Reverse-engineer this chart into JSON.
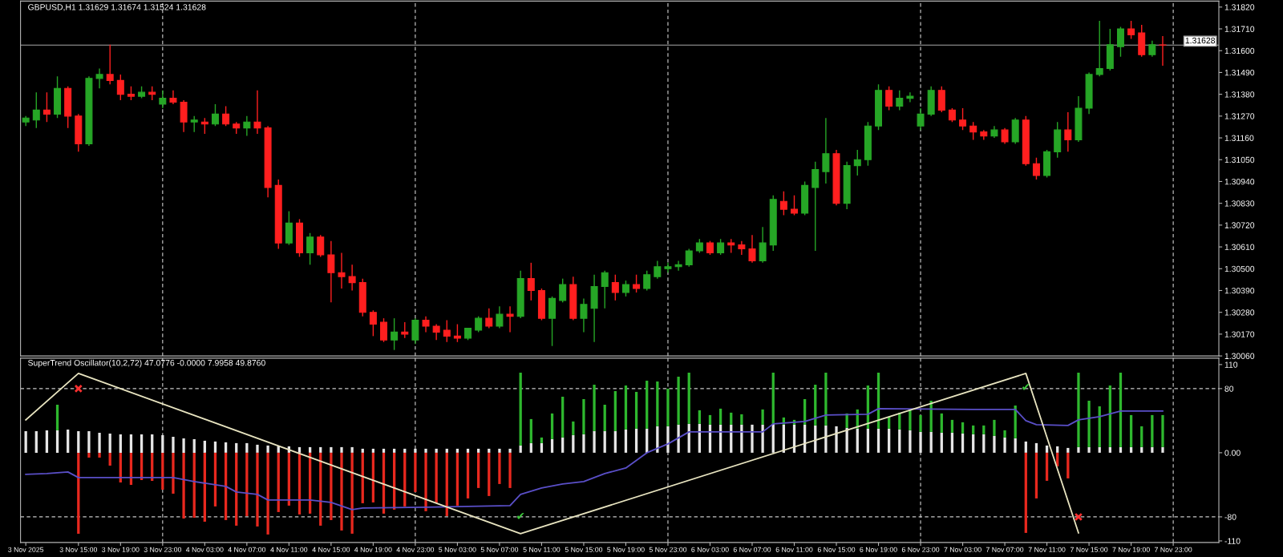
{
  "chart_data": [
    {
      "type": "candlestick",
      "title": "GBPUSD,H1 1.31629 1.31674 1.31524 1.31628",
      "x": [
        "2025-11-03T10:00",
        "2025-11-03T11:00",
        "2025-11-03T12:00",
        "2025-11-03T13:00",
        "2025-11-03T14:00",
        "2025-11-03T15:00",
        "2025-11-03T16:00",
        "2025-11-03T17:00",
        "2025-11-03T18:00",
        "2025-11-03T19:00",
        "2025-11-03T20:00",
        "2025-11-03T21:00",
        "2025-11-03T22:00",
        "2025-11-03T23:00",
        "2025-11-04T00:00",
        "2025-11-04T01:00",
        "2025-11-04T02:00",
        "2025-11-04T03:00",
        "2025-11-04T04:00",
        "2025-11-04T05:00",
        "2025-11-04T06:00",
        "2025-11-04T07:00",
        "2025-11-04T08:00",
        "2025-11-04T09:00",
        "2025-11-04T10:00",
        "2025-11-04T11:00",
        "2025-11-04T12:00",
        "2025-11-04T13:00",
        "2025-11-04T14:00",
        "2025-11-04T15:00",
        "2025-11-04T16:00",
        "2025-11-04T17:00",
        "2025-11-04T18:00",
        "2025-11-04T19:00",
        "2025-11-04T20:00",
        "2025-11-04T21:00",
        "2025-11-04T22:00",
        "2025-11-04T23:00",
        "2025-11-05T00:00",
        "2025-11-05T01:00",
        "2025-11-05T02:00",
        "2025-11-05T03:00",
        "2025-11-05T04:00",
        "2025-11-05T05:00",
        "2025-11-05T06:00",
        "2025-11-05T07:00",
        "2025-11-05T08:00",
        "2025-11-05T09:00",
        "2025-11-05T10:00",
        "2025-11-05T11:00",
        "2025-11-05T12:00",
        "2025-11-05T13:00",
        "2025-11-05T14:00",
        "2025-11-05T15:00",
        "2025-11-05T16:00",
        "2025-11-05T17:00",
        "2025-11-05T18:00",
        "2025-11-05T19:00",
        "2025-11-05T20:00",
        "2025-11-05T21:00",
        "2025-11-05T22:00",
        "2025-11-05T23:00",
        "2025-11-06T00:00",
        "2025-11-06T01:00",
        "2025-11-06T02:00",
        "2025-11-06T03:00",
        "2025-11-06T04:00",
        "2025-11-06T05:00",
        "2025-11-06T06:00",
        "2025-11-06T07:00",
        "2025-11-06T08:00",
        "2025-11-06T09:00",
        "2025-11-06T10:00",
        "2025-11-06T11:00",
        "2025-11-06T12:00",
        "2025-11-06T13:00",
        "2025-11-06T14:00",
        "2025-11-06T15:00",
        "2025-11-06T16:00",
        "2025-11-06T17:00",
        "2025-11-06T18:00",
        "2025-11-06T19:00",
        "2025-11-06T20:00",
        "2025-11-06T21:00",
        "2025-11-06T22:00",
        "2025-11-06T23:00",
        "2025-11-07T00:00",
        "2025-11-07T01:00",
        "2025-11-07T02:00",
        "2025-11-07T03:00",
        "2025-11-07T04:00",
        "2025-11-07T05:00",
        "2025-11-07T06:00",
        "2025-11-07T07:00",
        "2025-11-07T08:00",
        "2025-11-07T09:00",
        "2025-11-07T10:00",
        "2025-11-07T11:00",
        "2025-11-07T12:00",
        "2025-11-07T13:00",
        "2025-11-07T14:00",
        "2025-11-07T15:00",
        "2025-11-07T16:00",
        "2025-11-07T17:00",
        "2025-11-07T18:00",
        "2025-11-07T19:00",
        "2025-11-07T20:00",
        "2025-11-07T21:00",
        "2025-11-07T22:00"
      ],
      "ohlc": [
        [
          1.3124,
          1.3127,
          1.3122,
          1.3126
        ],
        [
          1.3125,
          1.3139,
          1.3121,
          1.313
        ],
        [
          1.313,
          1.3139,
          1.3124,
          1.3128
        ],
        [
          1.3128,
          1.3147,
          1.3126,
          1.3141
        ],
        [
          1.3141,
          1.3142,
          1.3121,
          1.3127
        ],
        [
          1.3127,
          1.3128,
          1.3109,
          1.3113
        ],
        [
          1.3113,
          1.3147,
          1.3112,
          1.3146
        ],
        [
          1.3146,
          1.3151,
          1.3141,
          1.3148
        ],
        [
          1.3148,
          1.3163,
          1.3143,
          1.3145
        ],
        [
          1.3145,
          1.3148,
          1.3135,
          1.3138
        ],
        [
          1.3138,
          1.3142,
          1.3135,
          1.3137
        ],
        [
          1.3137,
          1.3142,
          1.3136,
          1.3139
        ],
        [
          1.3139,
          1.3142,
          1.3135,
          1.3138
        ],
        [
          1.3133,
          1.314,
          1.3131,
          1.3136
        ],
        [
          1.3136,
          1.314,
          1.3133,
          1.3134
        ],
        [
          1.3134,
          1.3135,
          1.3119,
          1.3124
        ],
        [
          1.3124,
          1.3127,
          1.3119,
          1.3125
        ],
        [
          1.3124,
          1.3126,
          1.3118,
          1.3123
        ],
        [
          1.3123,
          1.3133,
          1.3122,
          1.3128
        ],
        [
          1.3128,
          1.3132,
          1.3122,
          1.3123
        ],
        [
          1.3123,
          1.3124,
          1.3118,
          1.3121
        ],
        [
          1.3121,
          1.3127,
          1.3117,
          1.3124
        ],
        [
          1.3124,
          1.314,
          1.3118,
          1.3121
        ],
        [
          1.3121,
          1.3122,
          1.3086,
          1.3091
        ],
        [
          1.3092,
          1.3095,
          1.306,
          1.3063
        ],
        [
          1.3063,
          1.3079,
          1.3062,
          1.3073
        ],
        [
          1.3073,
          1.3075,
          1.3056,
          1.3058
        ],
        [
          1.3058,
          1.3068,
          1.3052,
          1.3066
        ],
        [
          1.3066,
          1.3067,
          1.3056,
          1.3057
        ],
        [
          1.3057,
          1.3064,
          1.3033,
          1.3048
        ],
        [
          1.3048,
          1.3058,
          1.304,
          1.3046
        ],
        [
          1.3046,
          1.3052,
          1.3039,
          1.3043
        ],
        [
          1.3043,
          1.3045,
          1.3026,
          1.3028
        ],
        [
          1.3028,
          1.3029,
          1.3016,
          1.3022
        ],
        [
          1.3023,
          1.3025,
          1.3013,
          1.3014
        ],
        [
          1.3014,
          1.3025,
          1.3009,
          1.3018
        ],
        [
          1.3018,
          1.3023,
          1.3015,
          1.3017
        ],
        [
          1.3014,
          1.3025,
          1.3012,
          1.3024
        ],
        [
          1.3024,
          1.3026,
          1.3018,
          1.3021
        ],
        [
          1.3021,
          1.3022,
          1.3014,
          1.3018
        ],
        [
          1.3019,
          1.3024,
          1.3013,
          1.3016
        ],
        [
          1.3016,
          1.3022,
          1.3013,
          1.3015
        ],
        [
          1.3015,
          1.302,
          1.3014,
          1.302
        ],
        [
          1.3019,
          1.3026,
          1.3018,
          1.3025
        ],
        [
          1.3025,
          1.303,
          1.302,
          1.3021
        ],
        [
          1.3021,
          1.3031,
          1.302,
          1.3027
        ],
        [
          1.3027,
          1.3031,
          1.3018,
          1.3026
        ],
        [
          1.3026,
          1.3049,
          1.3025,
          1.3045
        ],
        [
          1.3045,
          1.3053,
          1.3034,
          1.3039
        ],
        [
          1.3039,
          1.304,
          1.3024,
          1.3025
        ],
        [
          1.3025,
          1.3036,
          1.3011,
          1.3035
        ],
        [
          1.3034,
          1.3045,
          1.3033,
          1.3042
        ],
        [
          1.3042,
          1.3046,
          1.3024,
          1.3025
        ],
        [
          1.3025,
          1.3035,
          1.3018,
          1.3032
        ],
        [
          1.303,
          1.3047,
          1.3013,
          1.3041
        ],
        [
          1.3041,
          1.3049,
          1.303,
          1.3048
        ],
        [
          1.3043,
          1.3047,
          1.3034,
          1.3038
        ],
        [
          1.3038,
          1.3044,
          1.3036,
          1.3042
        ],
        [
          1.3042,
          1.3047,
          1.3038,
          1.304
        ],
        [
          1.304,
          1.3049,
          1.3039,
          1.3047
        ],
        [
          1.3046,
          1.3054,
          1.3045,
          1.3051
        ],
        [
          1.305,
          1.3053,
          1.3048,
          1.3051
        ],
        [
          1.3051,
          1.3054,
          1.3049,
          1.3052
        ],
        [
          1.3052,
          1.306,
          1.3051,
          1.3059
        ],
        [
          1.3059,
          1.3065,
          1.3058,
          1.3063
        ],
        [
          1.3063,
          1.3064,
          1.3057,
          1.3058
        ],
        [
          1.3058,
          1.3065,
          1.3057,
          1.3063
        ],
        [
          1.3063,
          1.3065,
          1.3058,
          1.3062
        ],
        [
          1.3062,
          1.3064,
          1.3057,
          1.306
        ],
        [
          1.306,
          1.3067,
          1.3053,
          1.3054
        ],
        [
          1.3054,
          1.3071,
          1.3053,
          1.3063
        ],
        [
          1.3062,
          1.3087,
          1.3059,
          1.3085
        ],
        [
          1.3084,
          1.3089,
          1.3077,
          1.308
        ],
        [
          1.308,
          1.3087,
          1.3077,
          1.3078
        ],
        [
          1.3078,
          1.3094,
          1.3077,
          1.3092
        ],
        [
          1.3091,
          1.3104,
          1.3059,
          1.31
        ],
        [
          1.3099,
          1.3126,
          1.3093,
          1.3108
        ],
        [
          1.3108,
          1.311,
          1.3082,
          1.3083
        ],
        [
          1.3083,
          1.3104,
          1.308,
          1.3102
        ],
        [
          1.3102,
          1.311,
          1.3097,
          1.3105
        ],
        [
          1.3105,
          1.3124,
          1.3102,
          1.3122
        ],
        [
          1.3122,
          1.3143,
          1.312,
          1.314
        ],
        [
          1.314,
          1.3142,
          1.313,
          1.3132
        ],
        [
          1.3132,
          1.314,
          1.313,
          1.3136
        ],
        [
          1.3136,
          1.3139,
          1.3134,
          1.3137
        ],
        [
          1.3122,
          1.3131,
          1.312,
          1.3128
        ],
        [
          1.3128,
          1.3142,
          1.3127,
          1.314
        ],
        [
          1.314,
          1.3142,
          1.3129,
          1.313
        ],
        [
          1.313,
          1.3131,
          1.3124,
          1.3125
        ],
        [
          1.3125,
          1.3131,
          1.312,
          1.3122
        ],
        [
          1.3122,
          1.3124,
          1.3115,
          1.3119
        ],
        [
          1.3119,
          1.312,
          1.3115,
          1.3117
        ],
        [
          1.3117,
          1.3122,
          1.3116,
          1.312
        ],
        [
          1.312,
          1.3121,
          1.3113,
          1.3114
        ],
        [
          1.3114,
          1.3126,
          1.3113,
          1.3125
        ],
        [
          1.3125,
          1.3127,
          1.3102,
          1.3103
        ],
        [
          1.3103,
          1.3106,
          1.3095,
          1.3097
        ],
        [
          1.3097,
          1.311,
          1.3096,
          1.3109
        ],
        [
          1.3109,
          1.3124,
          1.3106,
          1.312
        ],
        [
          1.312,
          1.3129,
          1.3109,
          1.3115
        ],
        [
          1.3115,
          1.3137,
          1.3114,
          1.3131
        ],
        [
          1.3131,
          1.3149,
          1.3128,
          1.3148
        ],
        [
          1.3148,
          1.3175,
          1.3147,
          1.3151
        ],
        [
          1.3151,
          1.3171,
          1.315,
          1.3163
        ],
        [
          1.3162,
          1.3172,
          1.3157,
          1.3171
        ],
        [
          1.3171,
          1.3175,
          1.3166,
          1.3168
        ],
        [
          1.3169,
          1.3173,
          1.3157,
          1.3158
        ],
        [
          1.3158,
          1.3165,
          1.3157,
          1.3163
        ],
        [
          1.31629,
          1.31674,
          1.31524,
          1.31628
        ]
      ],
      "colors": [
        "#26a626",
        "#26a626",
        "#ff1f1f",
        "#26a626",
        "#ff1f1f",
        "#ff1f1f",
        "#26a626",
        "#26a626",
        "#ff1f1f",
        "#ff1f1f",
        "#ff1f1f",
        "#26a626",
        "#ff1f1f",
        "#26a626",
        "#ff1f1f",
        "#ff1f1f",
        "#26a626",
        "#ff1f1f",
        "#26a626",
        "#ff1f1f",
        "#ff1f1f",
        "#26a626",
        "#ff1f1f",
        "#ff1f1f",
        "#ff1f1f",
        "#26a626",
        "#ff1f1f",
        "#26a626",
        "#ff1f1f",
        "#ff1f1f",
        "#ff1f1f",
        "#ff1f1f",
        "#ff1f1f",
        "#ff1f1f",
        "#ff1f1f",
        "#26a626",
        "#ff1f1f",
        "#26a626",
        "#ff1f1f",
        "#ff1f1f",
        "#ff1f1f",
        "#ff1f1f",
        "#26a626",
        "#26a626",
        "#ff1f1f",
        "#26a626",
        "#ff1f1f",
        "#26a626",
        "#ff1f1f",
        "#ff1f1f",
        "#26a626",
        "#26a626",
        "#ff1f1f",
        "#26a626",
        "#26a626",
        "#26a626",
        "#ff1f1f",
        "#26a626",
        "#ff1f1f",
        "#26a626",
        "#26a626",
        "#26a626",
        "#26a626",
        "#26a626",
        "#26a626",
        "#ff1f1f",
        "#26a626",
        "#ff1f1f",
        "#ff1f1f",
        "#ff1f1f",
        "#26a626",
        "#26a626",
        "#ff1f1f",
        "#ff1f1f",
        "#26a626",
        "#26a626",
        "#26a626",
        "#ff1f1f",
        "#26a626",
        "#26a626",
        "#26a626",
        "#26a626",
        "#ff1f1f",
        "#26a626",
        "#26a626",
        "#26a626",
        "#26a626",
        "#ff1f1f",
        "#ff1f1f",
        "#ff1f1f",
        "#ff1f1f",
        "#ff1f1f",
        "#26a626",
        "#ff1f1f",
        "#26a626",
        "#ff1f1f",
        "#ff1f1f",
        "#26a626",
        "#26a626",
        "#ff1f1f",
        "#26a626",
        "#26a626",
        "#26a626",
        "#26a626",
        "#26a626",
        "#ff1f1f",
        "#ff1f1f",
        "#26a626",
        "#ff1f1f"
      ],
      "xlim": [
        "2025-11-03T09:30",
        "2025-11-08T03:20"
      ],
      "ylim": [
        1.3006,
        1.3185
      ],
      "yticks": [
        {
          "value": 1.3006,
          "label": "1.30060"
        },
        {
          "value": 1.3017,
          "label": "1.30170"
        },
        {
          "value": 1.3028,
          "label": "1.30280"
        },
        {
          "value": 1.3039,
          "label": "1.30390"
        },
        {
          "value": 1.305,
          "label": "1.30500"
        },
        {
          "value": 1.3061,
          "label": "1.30610"
        },
        {
          "value": 1.3072,
          "label": "1.30720"
        },
        {
          "value": 1.3083,
          "label": "1.30830"
        },
        {
          "value": 1.3094,
          "label": "1.30940"
        },
        {
          "value": 1.3105,
          "label": "1.31050"
        },
        {
          "value": 1.3116,
          "label": "1.31160"
        },
        {
          "value": 1.3127,
          "label": "1.31270"
        },
        {
          "value": 1.3138,
          "label": "1.31380"
        },
        {
          "value": 1.3149,
          "label": "1.31490"
        },
        {
          "value": 1.316,
          "label": "1.31600"
        },
        {
          "value": 1.3171,
          "label": "1.31710"
        },
        {
          "value": 1.3182,
          "label": "1.31820"
        }
      ],
      "ref_lines": [
        {
          "axis": "y",
          "value": 1.31628,
          "label": "1.31628",
          "color": "#a8a8a8",
          "line_style": "solid"
        },
        {
          "axis": "x",
          "value": "2025-11-03T23:00",
          "color": "#d0d0d0",
          "line_style": "dashed"
        },
        {
          "axis": "x",
          "value": "2025-11-04T23:00",
          "color": "#d0d0d0",
          "line_style": "dashed"
        },
        {
          "axis": "x",
          "value": "2025-11-05T23:00",
          "color": "#d0d0d0",
          "line_style": "dashed"
        },
        {
          "axis": "x",
          "value": "2025-11-06T23:00",
          "color": "#d0d0d0",
          "line_style": "dashed"
        },
        {
          "axis": "x",
          "value": "2025-11-07T23:00",
          "color": "#d0d0d0",
          "line_style": "dashed"
        }
      ],
      "tick_labels": "y"
    },
    {
      "type": "bar",
      "stacked": true,
      "title": "SuperTrend Oscillator(10,2,72) 47.0776 -0.0000 7.9958 49.8760",
      "x": [
        "2025-11-03T10:00",
        "2025-11-03T11:00",
        "2025-11-03T12:00",
        "2025-11-03T13:00",
        "2025-11-03T14:00",
        "2025-11-03T15:00",
        "2025-11-03T16:00",
        "2025-11-03T17:00",
        "2025-11-03T18:00",
        "2025-11-03T19:00",
        "2025-11-03T20:00",
        "2025-11-03T21:00",
        "2025-11-03T22:00",
        "2025-11-03T23:00",
        "2025-11-04T00:00",
        "2025-11-04T01:00",
        "2025-11-04T02:00",
        "2025-11-04T03:00",
        "2025-11-04T04:00",
        "2025-11-04T05:00",
        "2025-11-04T06:00",
        "2025-11-04T07:00",
        "2025-11-04T08:00",
        "2025-11-04T09:00",
        "2025-11-04T10:00",
        "2025-11-04T11:00",
        "2025-11-04T12:00",
        "2025-11-04T13:00",
        "2025-11-04T14:00",
        "2025-11-04T15:00",
        "2025-11-04T16:00",
        "2025-11-04T17:00",
        "2025-11-04T18:00",
        "2025-11-04T19:00",
        "2025-11-04T20:00",
        "2025-11-04T21:00",
        "2025-11-04T22:00",
        "2025-11-04T23:00",
        "2025-11-05T00:00",
        "2025-11-05T01:00",
        "2025-11-05T02:00",
        "2025-11-05T03:00",
        "2025-11-05T04:00",
        "2025-11-05T05:00",
        "2025-11-05T06:00",
        "2025-11-05T07:00",
        "2025-11-05T08:00",
        "2025-11-05T09:00",
        "2025-11-05T10:00",
        "2025-11-05T11:00",
        "2025-11-05T12:00",
        "2025-11-05T13:00",
        "2025-11-05T14:00",
        "2025-11-05T15:00",
        "2025-11-05T16:00",
        "2025-11-05T17:00",
        "2025-11-05T18:00",
        "2025-11-05T19:00",
        "2025-11-05T20:00",
        "2025-11-05T21:00",
        "2025-11-05T22:00",
        "2025-11-05T23:00",
        "2025-11-06T00:00",
        "2025-11-06T01:00",
        "2025-11-06T02:00",
        "2025-11-06T03:00",
        "2025-11-06T04:00",
        "2025-11-06T05:00",
        "2025-11-06T06:00",
        "2025-11-06T07:00",
        "2025-11-06T08:00",
        "2025-11-06T09:00",
        "2025-11-06T10:00",
        "2025-11-06T11:00",
        "2025-11-06T12:00",
        "2025-11-06T13:00",
        "2025-11-06T14:00",
        "2025-11-06T15:00",
        "2025-11-06T16:00",
        "2025-11-06T17:00",
        "2025-11-06T18:00",
        "2025-11-06T19:00",
        "2025-11-06T20:00",
        "2025-11-06T21:00",
        "2025-11-06T22:00",
        "2025-11-06T23:00",
        "2025-11-07T00:00",
        "2025-11-07T01:00",
        "2025-11-07T02:00",
        "2025-11-07T03:00",
        "2025-11-07T04:00",
        "2025-11-07T05:00",
        "2025-11-07T06:00",
        "2025-11-07T07:00",
        "2025-11-07T08:00",
        "2025-11-07T09:00",
        "2025-11-07T10:00",
        "2025-11-07T11:00",
        "2025-11-07T12:00",
        "2025-11-07T13:00",
        "2025-11-07T14:00",
        "2025-11-07T15:00",
        "2025-11-07T16:00",
        "2025-11-07T17:00",
        "2025-11-07T18:00",
        "2025-11-07T19:00",
        "2025-11-07T20:00",
        "2025-11-07T21:00",
        "2025-11-07T22:00"
      ],
      "series": [
        {
          "color": "#e6e6e6",
          "values": [
            27,
            27,
            28,
            28,
            29,
            27,
            27,
            25,
            24,
            23,
            23,
            23,
            23,
            22,
            20,
            18,
            17,
            15,
            14,
            13,
            12,
            12,
            10,
            9,
            8,
            8,
            7,
            7,
            7,
            7,
            7,
            7,
            5,
            5,
            5,
            5,
            5,
            5,
            5,
            5,
            5,
            5,
            5,
            5,
            5,
            5,
            5,
            9,
            12,
            12,
            17,
            19,
            22,
            23,
            27,
            27,
            27,
            29,
            30,
            30,
            33,
            33,
            35,
            36,
            36,
            35,
            35,
            35,
            35,
            35,
            35,
            36,
            35,
            35,
            35,
            34,
            34,
            33,
            31,
            30,
            30,
            30,
            30,
            29,
            28,
            26,
            26,
            25,
            25,
            24,
            23,
            23,
            21,
            19,
            18,
            14,
            12,
            9,
            8,
            6,
            7,
            7,
            7,
            7,
            7,
            7,
            7,
            7,
            7
          ]
        },
        {
          "color": "#2eb82e",
          "values": [
            null,
            null,
            null,
            32,
            null,
            null,
            null,
            null,
            null,
            null,
            null,
            null,
            null,
            null,
            null,
            null,
            null,
            null,
            null,
            null,
            null,
            null,
            null,
            null,
            null,
            null,
            null,
            null,
            null,
            null,
            null,
            null,
            null,
            null,
            null,
            null,
            null,
            null,
            null,
            null,
            null,
            null,
            null,
            null,
            null,
            null,
            null,
            91,
            30,
            7,
            32,
            51,
            17,
            44,
            58,
            33,
            50,
            55,
            46,
            60,
            56,
            47,
            60,
            64,
            17,
            12,
            20,
            15,
            13,
            null,
            19,
            64,
            9,
            6,
            32,
            51,
            66,
            null,
            18,
            24,
            54,
            70,
            15,
            21,
            26,
            21,
            39,
            24,
            16,
            14,
            11,
            11,
            20,
            9,
            41,
            null,
            null,
            null,
            null,
            null,
            93,
            58,
            51,
            77,
            93,
            40,
            26,
            40,
            40
          ]
        },
        {
          "color": "#e8281e",
          "values": [
            null,
            null,
            null,
            null,
            null,
            -101,
            -6,
            -6,
            -16,
            -37,
            -40,
            -34,
            -35,
            -46,
            -51,
            -82,
            -81,
            -86,
            -67,
            -84,
            -91,
            -79,
            -92,
            -102,
            -74,
            -66,
            -77,
            -76,
            -91,
            -84,
            -97,
            -101,
            -63,
            -62,
            -76,
            -71,
            -67,
            -49,
            -73,
            -63,
            -79,
            -66,
            -57,
            -44,
            -54,
            -39,
            -44,
            null,
            null,
            null,
            null,
            null,
            null,
            null,
            null,
            null,
            null,
            null,
            null,
            null,
            null,
            null,
            null,
            null,
            null,
            null,
            null,
            null,
            null,
            null,
            null,
            null,
            null,
            null,
            null,
            null,
            null,
            null,
            null,
            null,
            null,
            null,
            null,
            null,
            null,
            null,
            null,
            null,
            null,
            null,
            null,
            null,
            null,
            null,
            null,
            -100,
            -57,
            -35,
            -17,
            -32,
            null,
            null,
            null,
            null,
            null,
            null,
            null,
            null,
            null
          ]
        },
        {
          "type": "line",
          "color": "#5a4fc8",
          "x": [
            "2025-11-03T10:00",
            "2025-11-03T12:00",
            "2025-11-03T14:00",
            "2025-11-03T15:00",
            "2025-11-04T00:00",
            "2025-11-04T02:00",
            "2025-11-04T05:00",
            "2025-11-04T06:00",
            "2025-11-04T08:00",
            "2025-11-04T09:00",
            "2025-11-04T13:00",
            "2025-11-04T15:00",
            "2025-11-04T17:00",
            "2025-11-04T18:00",
            "2025-11-05T00:00",
            "2025-11-05T08:00",
            "2025-11-05T09:00",
            "2025-11-05T11:00",
            "2025-11-05T13:00",
            "2025-11-05T15:00",
            "2025-11-05T17:00",
            "2025-11-05T19:00",
            "2025-11-05T21:00",
            "2025-11-05T23:00",
            "2025-11-06T01:00",
            "2025-11-06T08:00",
            "2025-11-06T09:00",
            "2025-11-06T12:00",
            "2025-11-06T14:00",
            "2025-11-06T18:00",
            "2025-11-06T19:00",
            "2025-11-07T04:00",
            "2025-11-07T08:00",
            "2025-11-07T09:00",
            "2025-11-07T10:00",
            "2025-11-07T13:00",
            "2025-11-07T14:00",
            "2025-11-07T16:00",
            "2025-11-07T18:00",
            "2025-11-07T22:00"
          ],
          "values": [
            -27,
            -26,
            -24,
            -31,
            -31,
            -36,
            -42,
            -49,
            -52,
            -59,
            -59,
            -62,
            -71,
            -69,
            -68,
            -66,
            -52,
            -44,
            -39,
            -36,
            -26,
            -19,
            0,
            11,
            26,
            26,
            36,
            39,
            47,
            48,
            55,
            54,
            54,
            40,
            35,
            34,
            41,
            45,
            52,
            52
          ]
        },
        {
          "type": "line",
          "color": "#e8e4c0",
          "x": [
            "2025-11-03T10:00",
            "2025-11-03T15:00",
            "2025-11-05T09:00",
            "2025-11-07T09:00",
            "2025-11-07T14:00"
          ],
          "values": [
            41,
            99,
            -101,
            99,
            -100
          ]
        },
        {
          "type": "scatter",
          "marker": "cross",
          "color": "#ff3030",
          "x": [
            "2025-11-03T15:00",
            "2025-11-07T14:00"
          ],
          "values": [
            80,
            -80
          ]
        }
      ],
      "xlim": [
        "2025-11-03T09:30",
        "2025-11-08T03:20"
      ],
      "ylim": [
        -112,
        118
      ],
      "yticks": [
        110,
        80,
        {
          "value": 0,
          "label": "0.00"
        },
        -80,
        -110
      ],
      "xticks": [
        {
          "value": "2025-11-03T10:00",
          "label": "3 Nov 2025"
        },
        {
          "value": "2025-11-03T15:00",
          "label": "3 Nov 15:00"
        },
        {
          "value": "2025-11-03T19:00",
          "label": "3 Nov 19:00"
        },
        {
          "value": "2025-11-03T23:00",
          "label": "3 Nov 23:00"
        },
        {
          "value": "2025-11-04T03:00",
          "label": "4 Nov 03:00"
        },
        {
          "value": "2025-11-04T07:00",
          "label": "4 Nov 07:00"
        },
        {
          "value": "2025-11-04T11:00",
          "label": "4 Nov 11:00"
        },
        {
          "value": "2025-11-04T15:00",
          "label": "4 Nov 15:00"
        },
        {
          "value": "2025-11-04T19:00",
          "label": "4 Nov 19:00"
        },
        {
          "value": "2025-11-04T23:00",
          "label": "4 Nov 23:00"
        },
        {
          "value": "2025-11-05T03:00",
          "label": "5 Nov 03:00"
        },
        {
          "value": "2025-11-05T07:00",
          "label": "5 Nov 07:00"
        },
        {
          "value": "2025-11-05T11:00",
          "label": "5 Nov 11:00"
        },
        {
          "value": "2025-11-05T15:00",
          "label": "5 Nov 15:00"
        },
        {
          "value": "2025-11-05T19:00",
          "label": "5 Nov 19:00"
        },
        {
          "value": "2025-11-05T23:00",
          "label": "5 Nov 23:00"
        },
        {
          "value": "2025-11-06T03:00",
          "label": "6 Nov 03:00"
        },
        {
          "value": "2025-11-06T07:00",
          "label": "6 Nov 07:00"
        },
        {
          "value": "2025-11-06T11:00",
          "label": "6 Nov 11:00"
        },
        {
          "value": "2025-11-06T15:00",
          "label": "6 Nov 15:00"
        },
        {
          "value": "2025-11-06T19:00",
          "label": "6 Nov 19:00"
        },
        {
          "value": "2025-11-06T23:00",
          "label": "6 Nov 23:00"
        },
        {
          "value": "2025-11-07T03:00",
          "label": "7 Nov 03:00"
        },
        {
          "value": "2025-11-07T07:00",
          "label": "7 Nov 07:00"
        },
        {
          "value": "2025-11-07T11:00",
          "label": "7 Nov 11:00"
        },
        {
          "value": "2025-11-07T15:00",
          "label": "7 Nov 15:00"
        },
        {
          "value": "2025-11-07T19:00",
          "label": "7 Nov 19:00"
        },
        {
          "value": "2025-11-07T23:00",
          "label": "7 Nov 23:00"
        }
      ],
      "ref_lines": [
        {
          "axis": "y",
          "value": 80,
          "color": "#c8c8c8",
          "line_style": "dashed"
        },
        {
          "axis": "y",
          "value": -80,
          "color": "#c8c8c8",
          "line_style": "dashed"
        },
        {
          "axis": "x",
          "value": "2025-11-03T23:00",
          "color": "#d0d0d0",
          "line_style": "dashed"
        },
        {
          "axis": "x",
          "value": "2025-11-04T23:00",
          "color": "#d0d0d0",
          "line_style": "dashed"
        },
        {
          "axis": "x",
          "value": "2025-11-05T23:00",
          "color": "#d0d0d0",
          "line_style": "dashed"
        },
        {
          "axis": "x",
          "value": "2025-11-06T23:00",
          "color": "#d0d0d0",
          "line_style": "dashed"
        },
        {
          "axis": "x",
          "value": "2025-11-07T23:00",
          "color": "#d0d0d0",
          "line_style": "dashed"
        }
      ],
      "annotations": [
        {
          "text": "✔",
          "x": "2025-11-05T09:00",
          "y": -80
        },
        {
          "text": "✔",
          "x": "2025-11-07T09:00",
          "y": 81
        }
      ]
    }
  ]
}
